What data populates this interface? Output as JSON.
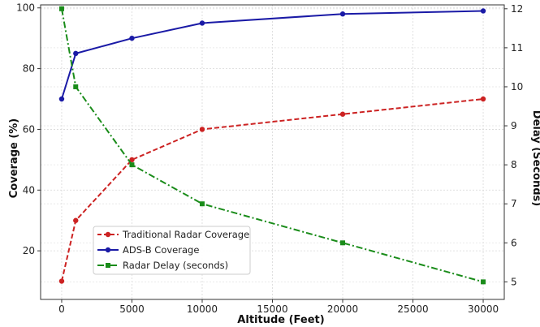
{
  "chart_data": {
    "type": "line",
    "xlabel": "Altitude (Feet)",
    "ylabel_left": "Coverage (%)",
    "ylabel_right": "Delay (Seconds)",
    "x": [
      0,
      1000,
      5000,
      10000,
      20000,
      30000
    ],
    "xlim": [
      -1500,
      31500
    ],
    "ylim_left": [
      4,
      101
    ],
    "ylim_right": [
      4.55,
      12.1
    ],
    "x_ticks": [
      0,
      5000,
      10000,
      15000,
      20000,
      25000,
      30000
    ],
    "y_left_ticks": [
      20,
      40,
      60,
      80,
      100
    ],
    "y_right_ticks": [
      5,
      6,
      7,
      8,
      9,
      10,
      11,
      12
    ],
    "grid": true,
    "legend_position": "lower-left",
    "series": [
      {
        "name": "Traditional Radar Coverage",
        "axis": "left",
        "color": "#cc2222",
        "line_style": "dashed",
        "marker": "circle",
        "values": [
          10,
          30,
          50,
          60,
          65,
          70
        ]
      },
      {
        "name": "ADS-B Coverage",
        "axis": "left",
        "color": "#1a1aa6",
        "line_style": "solid",
        "marker": "circle",
        "values": [
          70,
          85,
          90,
          95,
          98,
          99
        ]
      },
      {
        "name": "Radar Delay (seconds)",
        "axis": "right",
        "color": "#1a8c1a",
        "line_style": "dashdot",
        "marker": "square",
        "values": [
          12,
          10,
          8,
          7,
          6,
          5
        ]
      }
    ]
  }
}
